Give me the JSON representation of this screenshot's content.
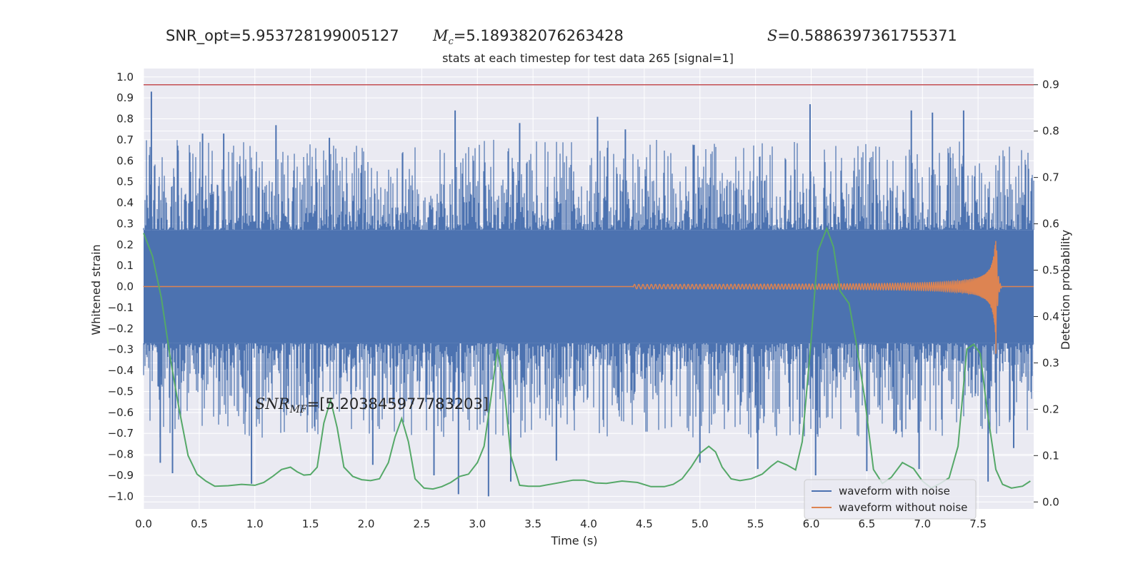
{
  "header": {
    "snr_opt": "SNR_opt=5.953728199005127",
    "mc_symbol": "M",
    "mc_sub": "c",
    "mc_value": "=5.189382076263428",
    "s_symbol": "S",
    "s_value": "=0.5886397361755371"
  },
  "annotation": {
    "snr_symbol": "SNR",
    "snr_sub": "MF",
    "snr_value": "=[5.203845977783203]"
  },
  "chart_data": {
    "type": "line",
    "title": "stats at each timestep for test data 265 [signal=1]",
    "xlabel": "Time (s)",
    "ylabel": "Whitened strain",
    "y2label": "Detection probability",
    "xlim": [
      0.0,
      8.0
    ],
    "ylim": [
      -1.06,
      1.04
    ],
    "y2lim": [
      -0.015,
      0.935
    ],
    "x_ticks": [
      "0.0",
      "0.5",
      "1.0",
      "1.5",
      "2.0",
      "2.5",
      "3.0",
      "3.5",
      "4.0",
      "4.5",
      "5.0",
      "5.5",
      "6.0",
      "6.5",
      "7.0",
      "7.5"
    ],
    "y_ticks": [
      "1.0",
      "0.9",
      "0.8",
      "0.7",
      "0.6",
      "0.5",
      "0.4",
      "0.3",
      "0.2",
      "0.1",
      "0.0",
      "−0.1",
      "−0.2",
      "−0.3",
      "−0.4",
      "−0.5",
      "−0.6",
      "−0.7",
      "−0.8",
      "−0.9",
      "−1.0"
    ],
    "y2_ticks": [
      "0.9",
      "0.8",
      "0.7",
      "0.6",
      "0.5",
      "0.4",
      "0.3",
      "0.2",
      "0.1",
      "0.0"
    ],
    "threshold": 0.9,
    "legend_position": "lower-right",
    "grid": true,
    "colors": {
      "background": "#eaeaf2",
      "grid": "#ffffff",
      "noisy": "#4c72b0",
      "clean": "#dd8452",
      "probability": "#55a868",
      "threshold": "#c44e52"
    },
    "series": [
      {
        "name": "waveform with noise",
        "color": "#4c72b0",
        "band": [
          -0.27,
          0.27
        ],
        "spikes": [
          {
            "x": 0.07,
            "y": 0.93
          },
          {
            "x": 0.15,
            "y": -0.84
          },
          {
            "x": 0.26,
            "y": -0.89
          },
          {
            "x": 0.31,
            "y": 0.65
          },
          {
            "x": 0.53,
            "y": 0.73
          },
          {
            "x": 0.72,
            "y": 0.73
          },
          {
            "x": 0.97,
            "y": -0.94
          },
          {
            "x": 1.19,
            "y": 0.77
          },
          {
            "x": 1.67,
            "y": 0.71
          },
          {
            "x": 2.06,
            "y": -0.85
          },
          {
            "x": 2.61,
            "y": -0.9
          },
          {
            "x": 2.8,
            "y": 0.84
          },
          {
            "x": 2.83,
            "y": -0.99
          },
          {
            "x": 3.1,
            "y": -1.0
          },
          {
            "x": 3.3,
            "y": -0.93
          },
          {
            "x": 3.38,
            "y": 0.78
          },
          {
            "x": 3.71,
            "y": -0.83
          },
          {
            "x": 4.08,
            "y": 0.81
          },
          {
            "x": 4.33,
            "y": 0.75
          },
          {
            "x": 5.0,
            "y": -0.84
          },
          {
            "x": 5.52,
            "y": -0.87
          },
          {
            "x": 5.99,
            "y": 0.87
          },
          {
            "x": 6.04,
            "y": -0.9
          },
          {
            "x": 6.5,
            "y": -0.88
          },
          {
            "x": 6.9,
            "y": 0.84
          },
          {
            "x": 6.97,
            "y": -0.87
          },
          {
            "x": 7.09,
            "y": 0.83
          },
          {
            "x": 7.37,
            "y": 0.84
          },
          {
            "x": 7.59,
            "y": -0.93
          },
          {
            "x": 7.82,
            "y": -0.77
          }
        ]
      },
      {
        "name": "waveform without noise",
        "color": "#dd8452",
        "chirp_start": 4.4,
        "merger_time": 7.66,
        "peak": 0.27,
        "trough": -0.32
      },
      {
        "color": "#55a868",
        "x": [
          0.0,
          0.08,
          0.16,
          0.24,
          0.32,
          0.4,
          0.48,
          0.56,
          0.64,
          0.76,
          0.88,
          1.0,
          1.08,
          1.16,
          1.24,
          1.32,
          1.38,
          1.44,
          1.5,
          1.56,
          1.62,
          1.68,
          1.74,
          1.8,
          1.88,
          1.96,
          2.04,
          2.12,
          2.2,
          2.26,
          2.32,
          2.38,
          2.44,
          2.52,
          2.6,
          2.68,
          2.76,
          2.84,
          2.92,
          3.0,
          3.06,
          3.12,
          3.18,
          3.24,
          3.3,
          3.38,
          3.46,
          3.56,
          3.7,
          3.86,
          3.96,
          4.06,
          4.16,
          4.3,
          4.44,
          4.56,
          4.68,
          4.76,
          4.84,
          4.92,
          5.0,
          5.08,
          5.14,
          5.2,
          5.28,
          5.36,
          5.46,
          5.56,
          5.64,
          5.7,
          5.78,
          5.86,
          5.92,
          6.0,
          6.06,
          6.14,
          6.2,
          6.26,
          6.34,
          6.4,
          6.48,
          6.56,
          6.64,
          6.72,
          6.82,
          6.92,
          7.0,
          7.08,
          7.16,
          7.24,
          7.32,
          7.4,
          7.46,
          7.52,
          7.58,
          7.66,
          7.72,
          7.8,
          7.9,
          7.97
        ],
        "y": [
          0.58,
          0.53,
          0.44,
          0.31,
          0.2,
          0.1,
          0.06,
          0.045,
          0.034,
          0.035,
          0.038,
          0.036,
          0.042,
          0.055,
          0.07,
          0.075,
          0.065,
          0.058,
          0.059,
          0.075,
          0.17,
          0.22,
          0.16,
          0.075,
          0.055,
          0.048,
          0.046,
          0.05,
          0.085,
          0.14,
          0.18,
          0.13,
          0.05,
          0.03,
          0.028,
          0.033,
          0.042,
          0.055,
          0.06,
          0.085,
          0.12,
          0.22,
          0.33,
          0.25,
          0.1,
          0.036,
          0.034,
          0.034,
          0.04,
          0.047,
          0.047,
          0.041,
          0.04,
          0.045,
          0.042,
          0.033,
          0.033,
          0.038,
          0.05,
          0.075,
          0.105,
          0.12,
          0.108,
          0.075,
          0.05,
          0.046,
          0.05,
          0.06,
          0.077,
          0.088,
          0.08,
          0.069,
          0.13,
          0.35,
          0.54,
          0.59,
          0.55,
          0.455,
          0.428,
          0.35,
          0.225,
          0.07,
          0.04,
          0.053,
          0.085,
          0.072,
          0.045,
          0.03,
          0.04,
          0.052,
          0.12,
          0.33,
          0.34,
          0.32,
          0.2,
          0.07,
          0.038,
          0.03,
          0.034,
          0.045
        ]
      }
    ]
  }
}
